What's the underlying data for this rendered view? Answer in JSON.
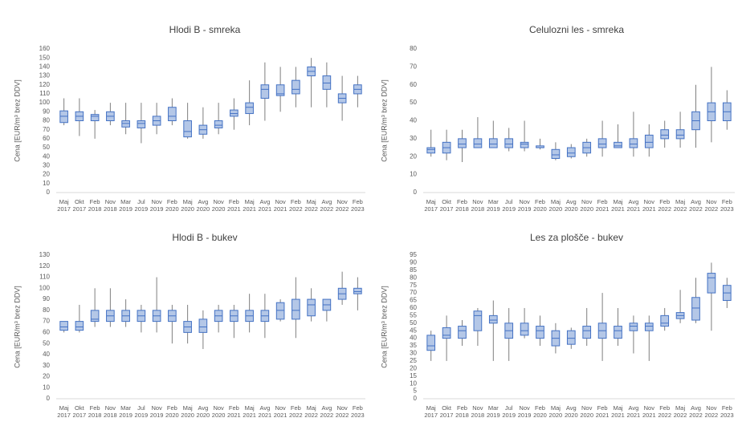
{
  "chart_data": [
    {
      "type": "box",
      "title": "Hlodi B - smreka",
      "y_label": "Cena [EUR/m³ brez DDV]",
      "categories": [
        "Maj 2017",
        "Okt 2017",
        "Feb 2018",
        "Nov 2018",
        "Mar 2019",
        "Jul 2019",
        "Nov 2019",
        "Feb 2020",
        "Maj 2020",
        "Avg 2020",
        "Nov 2020",
        "Feb 2021",
        "Maj 2021",
        "Avg 2021",
        "Nov 2021",
        "Feb 2022",
        "Maj 2022",
        "Avg 2022",
        "Nov 2022",
        "Feb 2023"
      ],
      "min": [
        75,
        63,
        60,
        75,
        65,
        55,
        65,
        75,
        60,
        60,
        65,
        70,
        75,
        80,
        90,
        95,
        95,
        95,
        80,
        95
      ],
      "q1": [
        78,
        80,
        80,
        80,
        73,
        72,
        75,
        80,
        62,
        65,
        72,
        85,
        88,
        105,
        108,
        110,
        130,
        115,
        100,
        110
      ],
      "median": [
        85,
        85,
        85,
        85,
        77,
        77,
        80,
        85,
        68,
        70,
        75,
        88,
        95,
        115,
        110,
        115,
        135,
        122,
        105,
        115
      ],
      "q3": [
        91,
        90,
        87,
        90,
        80,
        80,
        85,
        95,
        80,
        75,
        80,
        92,
        100,
        120,
        120,
        125,
        140,
        130,
        110,
        120
      ],
      "max": [
        105,
        105,
        92,
        100,
        100,
        100,
        100,
        105,
        100,
        95,
        100,
        105,
        125,
        145,
        140,
        140,
        150,
        145,
        130,
        130
      ],
      "color": "#b4c7e7",
      "edge": "#4472c4",
      "ylim": [
        0,
        160
      ],
      "yticks": [
        0,
        10,
        20,
        30,
        40,
        50,
        60,
        70,
        80,
        90,
        100,
        110,
        120,
        130,
        140,
        150,
        160
      ],
      "grid": false
    },
    {
      "type": "box",
      "title": "Celulozni les - smreka",
      "y_label": "Cena [EUR/m³ brez DDV]",
      "categories": [
        "Maj 2017",
        "Okt 2017",
        "Feb 2018",
        "Nov 2018",
        "Mar 2019",
        "Jul 2019",
        "Nov 2019",
        "Feb 2020",
        "Maj 2020",
        "Avg 2020",
        "Nov 2020",
        "Feb 2021",
        "Maj 2021",
        "Avg 2021",
        "Nov 2021",
        "Feb 2022",
        "Maj 2022",
        "Avg 2022",
        "Nov 2022",
        "Feb 2023"
      ],
      "min": [
        20,
        18,
        17,
        25,
        25,
        23,
        23,
        24,
        18,
        19,
        20,
        20,
        25,
        20,
        20,
        25,
        25,
        25,
        28,
        35
      ],
      "q1": [
        22,
        22,
        25,
        25,
        25,
        25,
        25,
        25,
        19,
        20,
        22,
        25,
        25,
        25,
        25,
        30,
        30,
        35,
        40,
        40
      ],
      "median": [
        24,
        25,
        27,
        27,
        27,
        27,
        27,
        25,
        21,
        22,
        25,
        27,
        26,
        27,
        28,
        32,
        32,
        40,
        45,
        45
      ],
      "q3": [
        25,
        28,
        30,
        30,
        30,
        30,
        28,
        26,
        24,
        25,
        28,
        30,
        28,
        30,
        32,
        35,
        35,
        45,
        50,
        50
      ],
      "max": [
        35,
        35,
        35,
        42,
        40,
        36,
        40,
        30,
        28,
        27,
        30,
        40,
        38,
        45,
        38,
        40,
        45,
        60,
        70,
        57
      ],
      "color": "#b4c7e7",
      "edge": "#4472c4",
      "ylim": [
        0,
        80
      ],
      "yticks": [
        0,
        10,
        20,
        30,
        40,
        50,
        60,
        70,
        80
      ],
      "grid": false
    },
    {
      "type": "box",
      "title": "Hlodi B - bukev",
      "y_label": "Cena [EUR/m³ brez DDV]",
      "categories": [
        "Maj 2017",
        "Okt 2017",
        "Feb 2018",
        "Nov 2018",
        "Mar 2019",
        "Jul 2019",
        "Nov 2019",
        "Feb 2020",
        "Maj 2020",
        "Avg 2020",
        "Nov 2020",
        "Feb 2021",
        "Maj 2021",
        "Avg 2021",
        "Nov 2021",
        "Feb 2022",
        "Maj 2022",
        "Avg 2022",
        "Nov 2022",
        "Feb 2023"
      ],
      "min": [
        60,
        60,
        65,
        65,
        65,
        60,
        60,
        50,
        50,
        45,
        60,
        55,
        60,
        55,
        70,
        55,
        70,
        70,
        85,
        80
      ],
      "q1": [
        62,
        62,
        70,
        70,
        70,
        70,
        70,
        70,
        60,
        60,
        70,
        70,
        70,
        70,
        72,
        72,
        75,
        80,
        90,
        95
      ],
      "median": [
        65,
        65,
        72,
        75,
        75,
        75,
        75,
        75,
        65,
        65,
        75,
        75,
        75,
        75,
        80,
        80,
        85,
        85,
        95,
        97
      ],
      "q3": [
        70,
        70,
        80,
        80,
        80,
        80,
        80,
        80,
        70,
        72,
        80,
        80,
        80,
        80,
        87,
        90,
        90,
        90,
        100,
        100
      ],
      "max": [
        70,
        85,
        100,
        100,
        90,
        85,
        110,
        85,
        85,
        80,
        85,
        85,
        95,
        95,
        90,
        110,
        100,
        90,
        115,
        110
      ],
      "color": "#b4c7e7",
      "edge": "#4472c4",
      "ylim": [
        0,
        130
      ],
      "yticks": [
        0,
        10,
        20,
        30,
        40,
        50,
        60,
        70,
        80,
        90,
        100,
        110,
        120,
        130
      ],
      "grid": false
    },
    {
      "type": "box",
      "title": "Les za plošče - bukev",
      "y_label": "Cena [EUR/m³ brez DDV]",
      "categories": [
        "Maj 2017",
        "Okt 2017",
        "Feb 2018",
        "Nov 2018",
        "Mar 2019",
        "Jul 2019",
        "Nov 2019",
        "Feb 2020",
        "Maj 2020",
        "Avg 2020",
        "Nov 2020",
        "Feb 2021",
        "Maj 2021",
        "Avg 2021",
        "Nov 2021",
        "Feb 2022",
        "Maj 2022",
        "Avg 2022",
        "Nov 2022",
        "Feb 2023"
      ],
      "min": [
        25,
        25,
        35,
        35,
        25,
        25,
        40,
        35,
        30,
        33,
        35,
        25,
        35,
        30,
        25,
        45,
        50,
        50,
        45,
        60
      ],
      "q1": [
        32,
        40,
        40,
        45,
        50,
        40,
        42,
        40,
        35,
        36,
        40,
        40,
        40,
        45,
        45,
        48,
        53,
        52,
        70,
        65
      ],
      "median": [
        35,
        42,
        45,
        55,
        52,
        45,
        45,
        45,
        40,
        40,
        45,
        45,
        45,
        48,
        48,
        50,
        55,
        60,
        80,
        70
      ],
      "q3": [
        42,
        47,
        48,
        58,
        55,
        50,
        50,
        48,
        45,
        45,
        48,
        50,
        48,
        50,
        50,
        55,
        57,
        67,
        83,
        75
      ],
      "max": [
        45,
        55,
        52,
        60,
        65,
        60,
        60,
        55,
        50,
        47,
        60,
        70,
        60,
        55,
        55,
        60,
        72,
        80,
        90,
        80
      ],
      "color": "#b4c7e7",
      "edge": "#4472c4",
      "ylim": [
        0,
        95
      ],
      "yticks": [
        0,
        5,
        10,
        15,
        20,
        25,
        30,
        35,
        40,
        45,
        50,
        55,
        60,
        65,
        70,
        75,
        80,
        85,
        90,
        95
      ],
      "grid": false
    }
  ]
}
